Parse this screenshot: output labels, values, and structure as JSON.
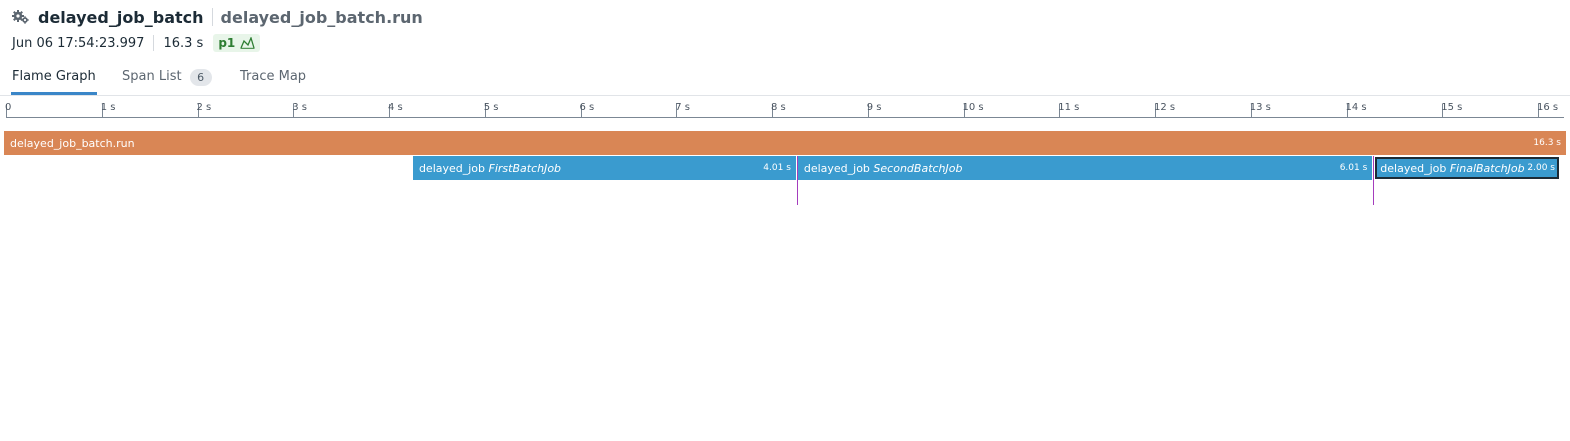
{
  "header": {
    "service": "delayed_job_batch",
    "operation": "delayed_job_batch.run",
    "icon": "gears-icon"
  },
  "meta": {
    "timestamp": "Jun 06 17:54:23.997",
    "duration": "16.3 s",
    "priority": "p1",
    "priority_icon": "trend-chart-icon",
    "colors": {
      "badge_bg": "#e8f5e9",
      "badge_fg": "#2e7d32"
    }
  },
  "tabs": [
    {
      "label": "Flame Graph",
      "active": true
    },
    {
      "label": "Span List",
      "count": "6"
    },
    {
      "label": "Trace Map"
    }
  ],
  "timeline": {
    "unit": "s",
    "ticks": [
      "0",
      "1 s",
      "2 s",
      "3 s",
      "4 s",
      "5 s",
      "6 s",
      "7 s",
      "8 s",
      "9 s",
      "10 s",
      "11 s",
      "12 s",
      "13 s",
      "14 s",
      "15 s",
      "16 s"
    ],
    "total_seconds": 16.3
  },
  "spans": [
    {
      "service": "delayed_job_batch.run",
      "resource": "",
      "start": 0,
      "duration": 16.3,
      "duration_label": "16.3 s",
      "depth": 0,
      "color": "#d98655"
    },
    {
      "service": "delayed_job",
      "resource": "FirstBatchJob",
      "start": 4.25,
      "duration": 4.01,
      "duration_label": "4.01 s",
      "depth": 1,
      "color": "#3a9bcf"
    },
    {
      "service": "delayed_job",
      "resource": "SecondBatchJob",
      "start": 8.27,
      "duration": 6.01,
      "duration_label": "6.01 s",
      "depth": 1,
      "color": "#3a9bcf"
    },
    {
      "service": "delayed_job",
      "resource": "FinalBatchJob",
      "start": 14.29,
      "duration": 2.0,
      "duration_label": "2.00 s",
      "depth": 1,
      "color": "#3a9bcf",
      "selected": true
    }
  ],
  "markers": [
    8.27,
    14.29
  ]
}
